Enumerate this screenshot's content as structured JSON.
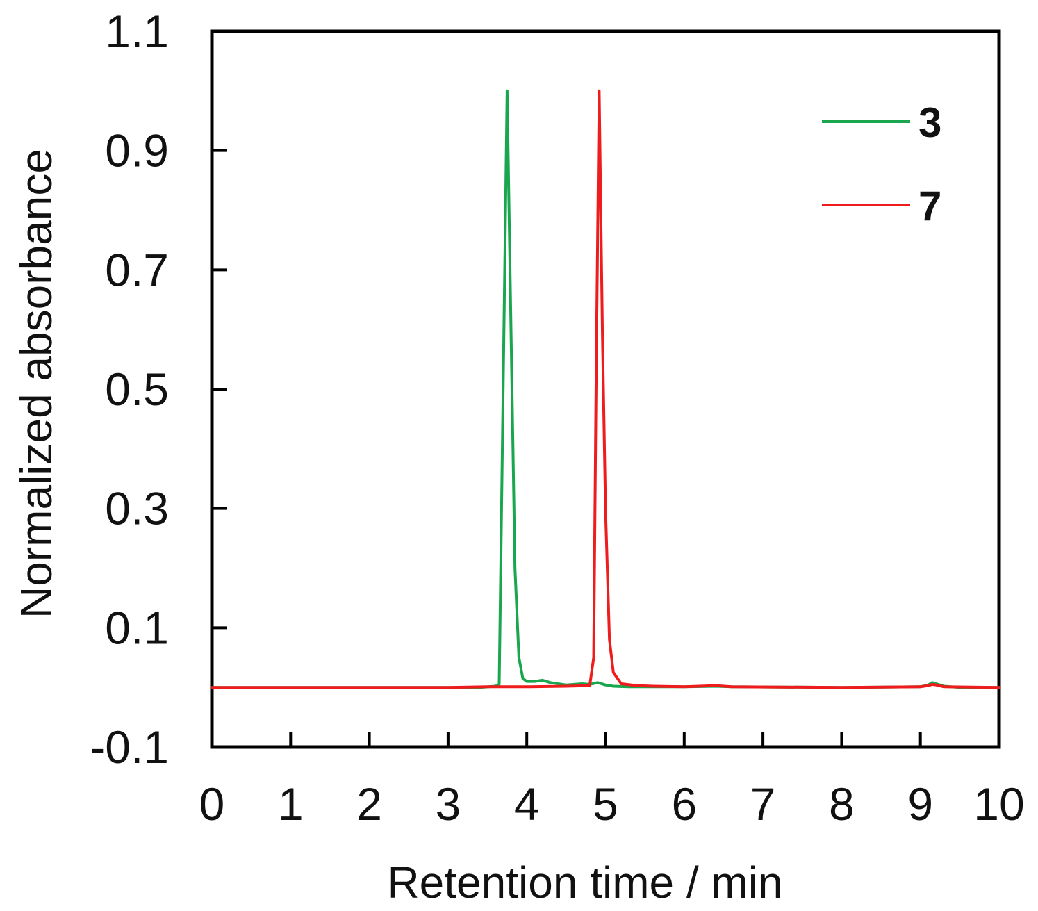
{
  "chart_data": {
    "type": "line",
    "xlabel": "Retention time / min",
    "ylabel": "Normalized absorbance",
    "xlim": [
      0,
      10
    ],
    "ylim": [
      -0.1,
      1.1
    ],
    "xticks": [
      0,
      1,
      2,
      3,
      4,
      5,
      6,
      7,
      8,
      9,
      10
    ],
    "xtick_labels": [
      "0",
      "1",
      "2",
      "3",
      "4",
      "5",
      "6",
      "7",
      "8",
      "9",
      "10"
    ],
    "yticks": [
      -0.1,
      0.1,
      0.3,
      0.5,
      0.7,
      0.9,
      1.1
    ],
    "ytick_labels": [
      "-0.1",
      "0.1",
      "0.3",
      "0.5",
      "0.7",
      "0.9",
      "1.1"
    ],
    "grid": false,
    "legend_position": "top-right",
    "series": [
      {
        "name": "3",
        "color": "#1aa64f",
        "points": [
          [
            0,
            0
          ],
          [
            3.4,
            0
          ],
          [
            3.6,
            0.002
          ],
          [
            3.65,
            0.005
          ],
          [
            3.7,
            0.5
          ],
          [
            3.75,
            1.0
          ],
          [
            3.8,
            0.6
          ],
          [
            3.85,
            0.2
          ],
          [
            3.9,
            0.05
          ],
          [
            3.95,
            0.015
          ],
          [
            4.0,
            0.01
          ],
          [
            4.1,
            0.01
          ],
          [
            4.2,
            0.012
          ],
          [
            4.3,
            0.008
          ],
          [
            4.5,
            0.004
          ],
          [
            4.7,
            0.006
          ],
          [
            4.8,
            0.005
          ],
          [
            4.9,
            0.008
          ],
          [
            5.0,
            0.004
          ],
          [
            5.1,
            0.002
          ],
          [
            5.3,
            0.001
          ],
          [
            6.0,
            0.001
          ],
          [
            6.4,
            0.002
          ],
          [
            6.6,
            0.001
          ],
          [
            8.0,
            0
          ],
          [
            9.0,
            0.001
          ],
          [
            9.1,
            0.004
          ],
          [
            9.15,
            0.008
          ],
          [
            9.2,
            0.006
          ],
          [
            9.3,
            0.002
          ],
          [
            9.5,
            0
          ],
          [
            10,
            0
          ]
        ]
      },
      {
        "name": "7",
        "color": "#ee1c1c",
        "points": [
          [
            0,
            0
          ],
          [
            3.0,
            0
          ],
          [
            3.5,
            0.001
          ],
          [
            4.0,
            0.001
          ],
          [
            4.5,
            0.002
          ],
          [
            4.8,
            0.003
          ],
          [
            4.85,
            0.05
          ],
          [
            4.88,
            0.5
          ],
          [
            4.92,
            1.0
          ],
          [
            4.96,
            0.6
          ],
          [
            5.0,
            0.3
          ],
          [
            5.05,
            0.08
          ],
          [
            5.1,
            0.025
          ],
          [
            5.2,
            0.006
          ],
          [
            5.4,
            0.003
          ],
          [
            5.6,
            0.002
          ],
          [
            6.0,
            0.001
          ],
          [
            6.4,
            0.003
          ],
          [
            6.6,
            0.001
          ],
          [
            8.0,
            0
          ],
          [
            9.0,
            0.001
          ],
          [
            9.1,
            0.003
          ],
          [
            9.15,
            0.005
          ],
          [
            9.2,
            0.004
          ],
          [
            9.3,
            0.001
          ],
          [
            10,
            0
          ]
        ]
      }
    ]
  }
}
